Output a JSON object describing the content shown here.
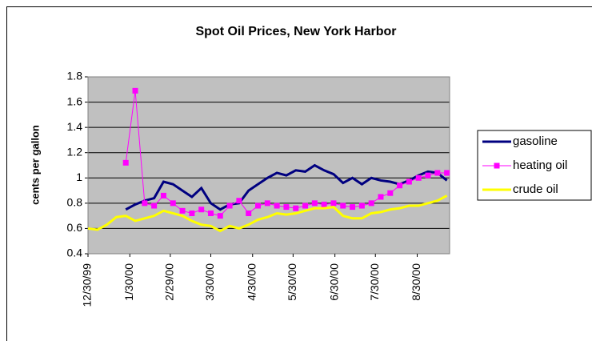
{
  "chart_data": {
    "type": "line",
    "title": "Spot Oil Prices, New York Harbor",
    "y_label": "cents per gallon",
    "x": [
      "1999-12-30",
      "2000-01-06",
      "2000-01-13",
      "2000-01-20",
      "2000-01-27",
      "2000-02-03",
      "2000-02-10",
      "2000-02-17",
      "2000-02-24",
      "2000-03-02",
      "2000-03-09",
      "2000-03-16",
      "2000-03-23",
      "2000-03-30",
      "2000-04-06",
      "2000-04-13",
      "2000-04-20",
      "2000-04-27",
      "2000-05-04",
      "2000-05-11",
      "2000-05-18",
      "2000-05-25",
      "2000-06-01",
      "2000-06-08",
      "2000-06-15",
      "2000-06-22",
      "2000-06-29",
      "2000-07-06",
      "2000-07-13",
      "2000-07-20",
      "2000-07-27",
      "2000-08-03",
      "2000-08-10",
      "2000-08-17",
      "2000-08-24",
      "2000-08-31",
      "2000-09-07",
      "2000-09-14",
      "2000-09-21"
    ],
    "series": [
      {
        "name": "gasoline",
        "color": "#000080",
        "values": [
          null,
          null,
          null,
          null,
          0.75,
          0.79,
          0.82,
          0.84,
          0.97,
          0.95,
          0.9,
          0.85,
          0.92,
          0.8,
          0.75,
          0.79,
          0.8,
          0.9,
          0.95,
          1.0,
          1.04,
          1.02,
          1.06,
          1.05,
          1.1,
          1.06,
          1.03,
          0.96,
          1.0,
          0.95,
          1.0,
          0.98,
          0.97,
          0.95,
          0.98,
          1.02,
          1.05,
          1.04,
          0.98
        ]
      },
      {
        "name": "heating oil",
        "color": "#ff00ff",
        "marker": "square",
        "values": [
          null,
          null,
          null,
          null,
          1.12,
          1.69,
          0.8,
          0.78,
          0.86,
          0.8,
          0.74,
          0.72,
          0.75,
          0.72,
          0.7,
          0.78,
          0.82,
          0.72,
          0.78,
          0.8,
          0.78,
          0.77,
          0.76,
          0.78,
          0.8,
          0.79,
          0.8,
          0.78,
          0.77,
          0.78,
          0.8,
          0.85,
          0.88,
          0.94,
          0.97,
          1.0,
          1.02,
          1.04,
          1.04
        ]
      },
      {
        "name": "crude oil",
        "color": "#ffff00",
        "values": [
          0.6,
          0.59,
          0.63,
          0.69,
          0.7,
          0.66,
          0.68,
          0.7,
          0.74,
          0.72,
          0.7,
          0.66,
          0.63,
          0.62,
          0.58,
          0.62,
          0.6,
          0.63,
          0.67,
          0.69,
          0.72,
          0.71,
          0.72,
          0.74,
          0.76,
          0.76,
          0.77,
          0.7,
          0.68,
          0.68,
          0.72,
          0.73,
          0.75,
          0.76,
          0.78,
          0.78,
          0.8,
          0.82,
          0.86
        ]
      }
    ],
    "xlim": [
      "1999-12-30",
      "2000-09-23"
    ],
    "xticks": [
      {
        "value": "1999-12-30",
        "label": "12/30/99"
      },
      {
        "value": "2000-01-30",
        "label": "1/30/00"
      },
      {
        "value": "2000-02-29",
        "label": "2/29/00"
      },
      {
        "value": "2000-03-30",
        "label": "3/30/00"
      },
      {
        "value": "2000-04-30",
        "label": "4/30/00"
      },
      {
        "value": "2000-05-30",
        "label": "5/30/00"
      },
      {
        "value": "2000-06-30",
        "label": "6/30/00"
      },
      {
        "value": "2000-07-30",
        "label": "7/30/00"
      },
      {
        "value": "2000-08-30",
        "label": "8/30/00"
      }
    ],
    "ylim": [
      0.4,
      1.8
    ],
    "yticks": [
      0.4,
      0.6,
      0.8,
      1,
      1.2,
      1.4,
      1.6,
      1.8
    ],
    "grid": true,
    "legend": "right"
  }
}
